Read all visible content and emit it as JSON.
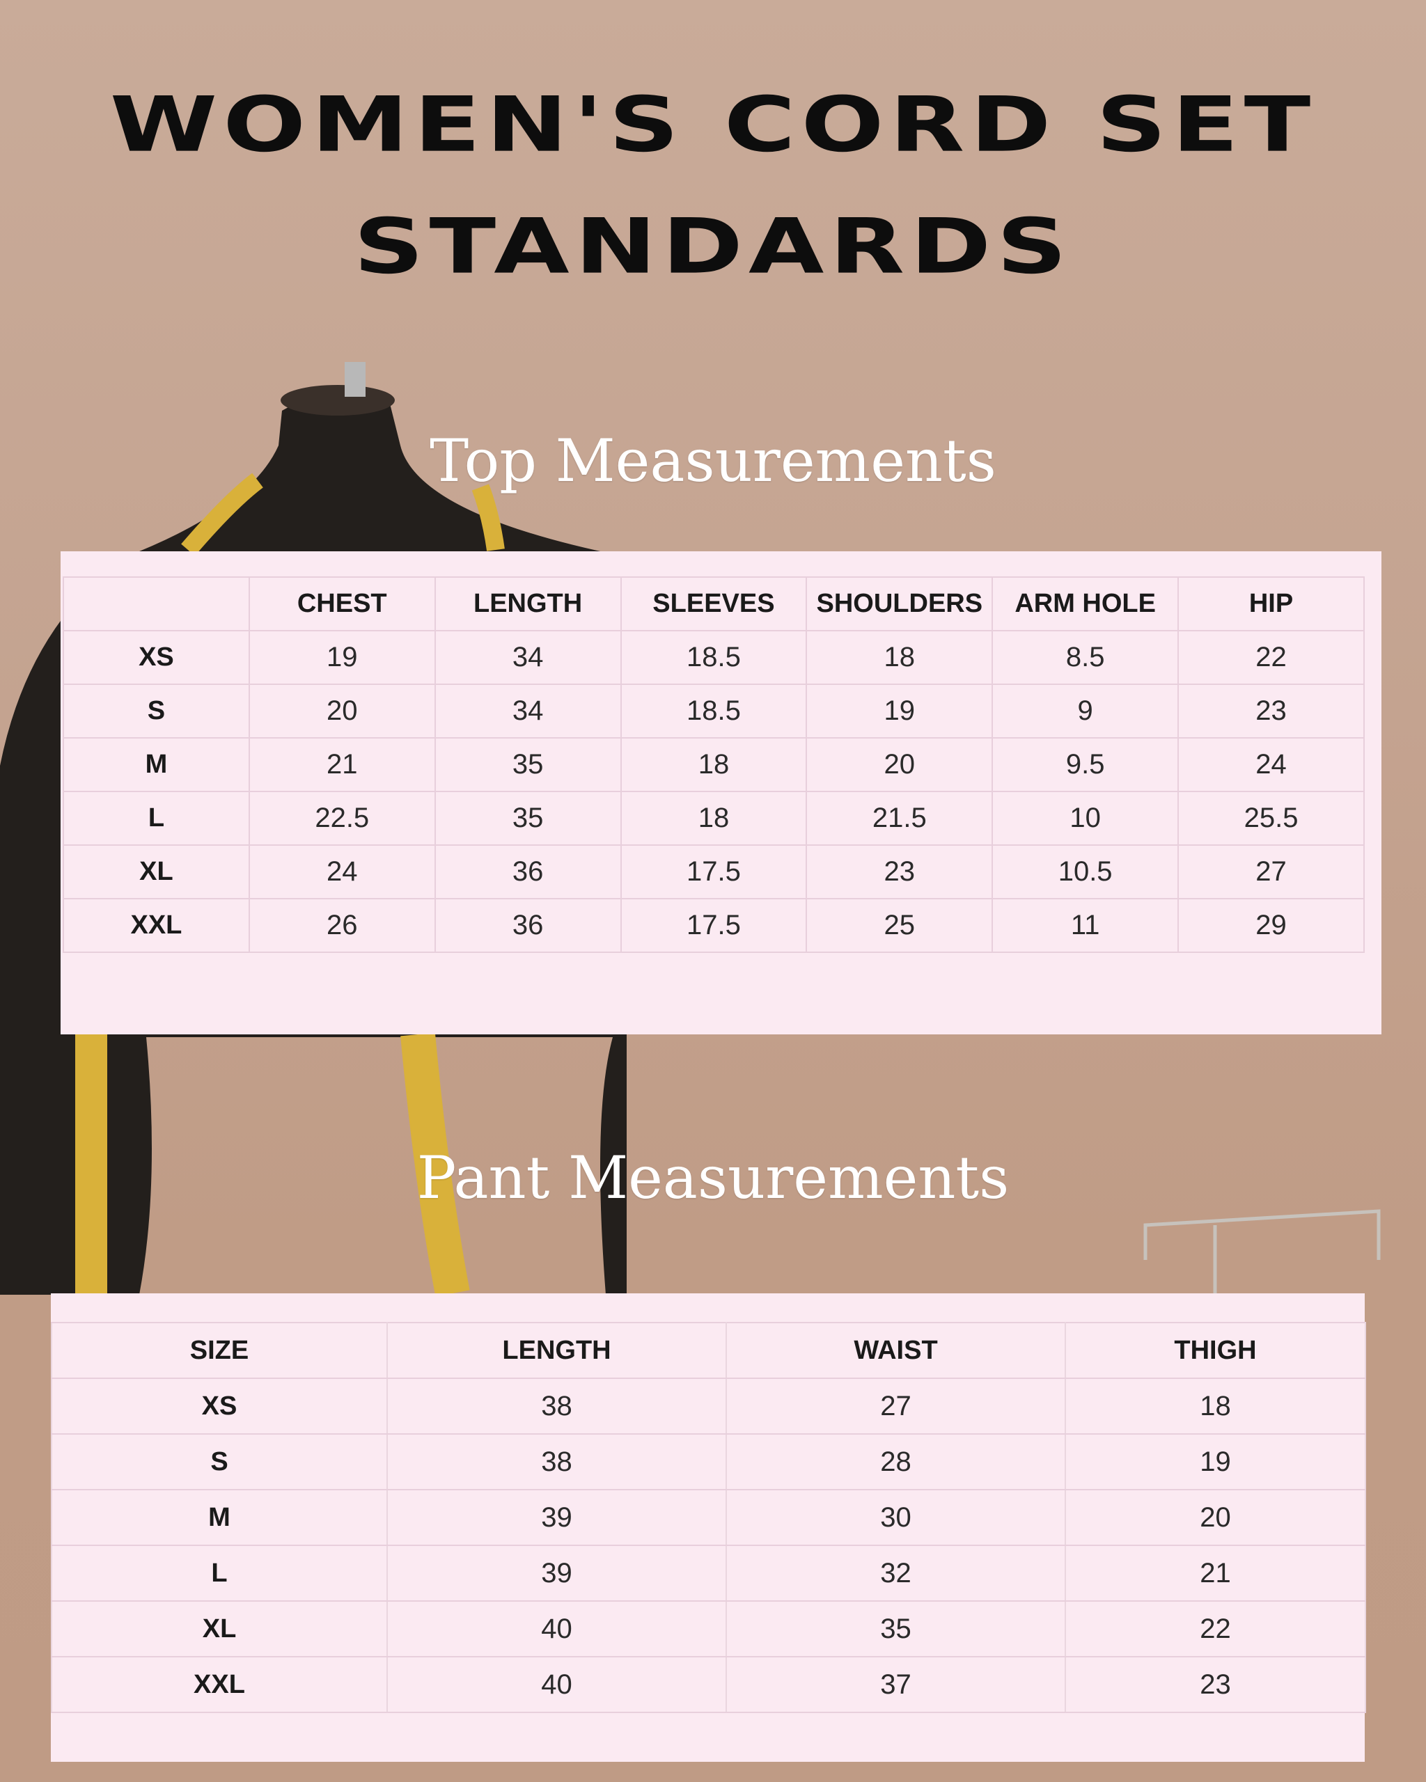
{
  "title": {
    "line1": "WOMEN'S CORD SET",
    "line2": "STANDARDS"
  },
  "colors": {
    "background": "#c4a390",
    "panel": "#fbeaf2",
    "grid": "#e8cfdc",
    "title_text": "#0d0d0d",
    "section_title_text": "#ffffff"
  },
  "top": {
    "heading": "Top Measurements",
    "columns": [
      "",
      "CHEST",
      "LENGTH",
      "SLEEVES",
      "SHOULDERS",
      "ARM HOLE",
      "HIP"
    ],
    "rows": [
      [
        "XS",
        "19",
        "34",
        "18.5",
        "18",
        "8.5",
        "22"
      ],
      [
        "S",
        "20",
        "34",
        "18.5",
        "19",
        "9",
        "23"
      ],
      [
        "M",
        "21",
        "35",
        "18",
        "20",
        "9.5",
        "24"
      ],
      [
        "L",
        "22.5",
        "35",
        "18",
        "21.5",
        "10",
        "25.5"
      ],
      [
        "XL",
        "24",
        "36",
        "17.5",
        "23",
        "10.5",
        "27"
      ],
      [
        "XXL",
        "26",
        "36",
        "17.5",
        "25",
        "11",
        "29"
      ]
    ]
  },
  "pant": {
    "heading": "Pant Measurements",
    "columns": [
      "SIZE",
      "LENGTH",
      "WAIST",
      "THIGH"
    ],
    "rows": [
      [
        "XS",
        "38",
        "27",
        "18"
      ],
      [
        "S",
        "38",
        "28",
        "19"
      ],
      [
        "M",
        "39",
        "30",
        "20"
      ],
      [
        "L",
        "39",
        "32",
        "21"
      ],
      [
        "XL",
        "40",
        "35",
        "22"
      ],
      [
        "XXL",
        "40",
        "37",
        "23"
      ]
    ]
  }
}
